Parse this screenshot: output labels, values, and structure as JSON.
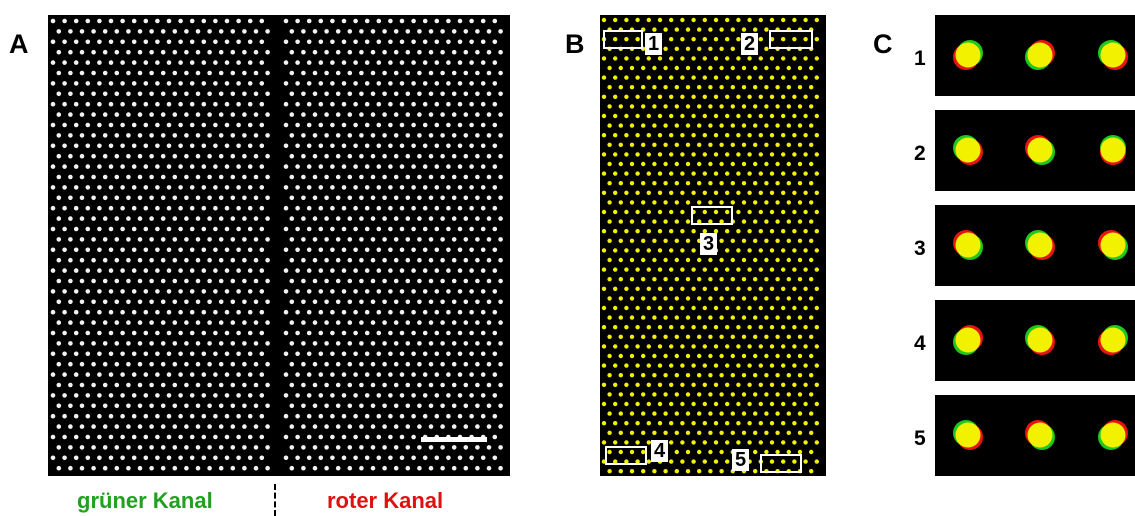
{
  "panel_labels": {
    "a": "A",
    "b": "B",
    "c": "C"
  },
  "channel_labels": {
    "green": {
      "text": "grüner Kanal",
      "color": "#22a022"
    },
    "red": {
      "text": "roter Kanal",
      "color": "#e01010"
    }
  },
  "region_labels": [
    "1",
    "2",
    "3",
    "4",
    "5"
  ],
  "crop_labels": [
    "1",
    "2",
    "3",
    "4",
    "5"
  ],
  "colors": {
    "background": "#000000",
    "panel_a_dot": "#f2f2f2",
    "overlap_yellow": "#f2f200",
    "green_channel": "#1ec81e",
    "red_channel": "#e61414",
    "box_outline": "#ffffff"
  },
  "scale_bar": {
    "present": true
  }
}
